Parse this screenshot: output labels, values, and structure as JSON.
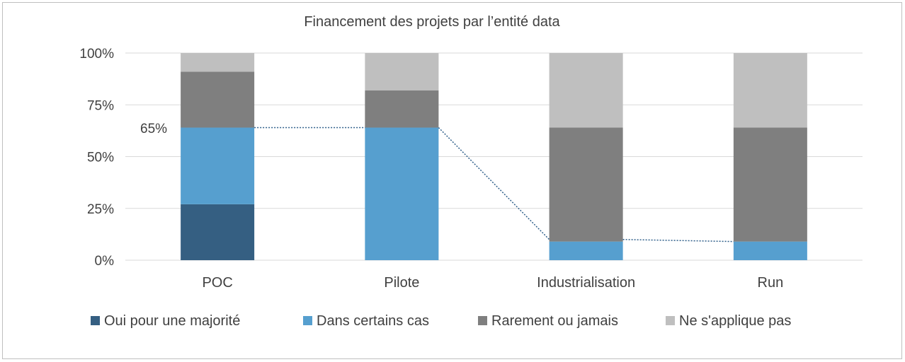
{
  "chart_data": {
    "type": "bar",
    "stacked": true,
    "normalized": true,
    "title": "Financement des projets par l’entité data",
    "categories": [
      "POC",
      "Pilote",
      "Industrialisation",
      "Run"
    ],
    "ylim": [
      0,
      100
    ],
    "yticks": [
      "0%",
      "25%",
      "50%",
      "75%",
      "100%"
    ],
    "ytick_values": [
      0,
      25,
      50,
      75,
      100
    ],
    "grid": true,
    "legend_position": "bottom",
    "series": [
      {
        "name": "Oui pour une majorité",
        "color": "#355f82",
        "values": [
          27,
          0,
          0,
          0
        ]
      },
      {
        "name": "Dans certains cas",
        "color": "#569fcf",
        "values": [
          37,
          64,
          9,
          9
        ]
      },
      {
        "name": "Rarement ou jamais",
        "color": "#7f7f7f",
        "values": [
          27,
          18,
          55,
          55
        ]
      },
      {
        "name": "Ne s'applique pas",
        "color": "#bfbfbf",
        "values": [
          9,
          18,
          36,
          36
        ]
      }
    ],
    "trend_line": {
      "values": [
        64,
        64,
        10,
        9
      ],
      "style": "dotted",
      "color": "#2f5f8a"
    },
    "annotation": {
      "text": "65%",
      "category": "POC"
    }
  }
}
